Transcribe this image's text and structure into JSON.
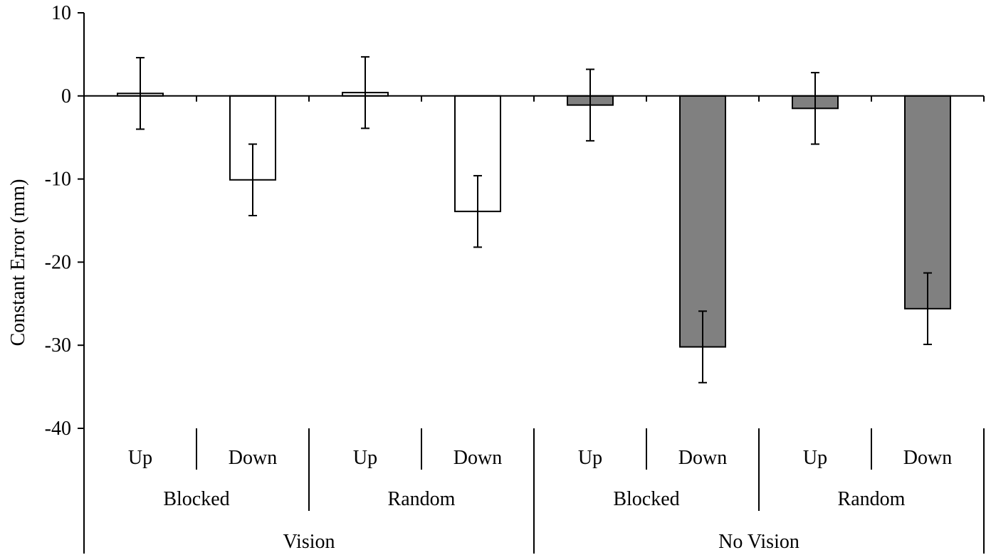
{
  "chart_data": {
    "type": "bar",
    "title": "",
    "xlabel": "",
    "ylabel": "Constant Error (mm)",
    "ylim": [
      -40,
      10
    ],
    "yticks": [
      10,
      0,
      -10,
      -20,
      -30,
      -40
    ],
    "grid": false,
    "legend": "none",
    "categories": [
      {
        "vision": "Vision",
        "schedule": "Blocked",
        "direction": "Up",
        "value": 0.3,
        "error": 4.3,
        "fill": "#ffffff"
      },
      {
        "vision": "Vision",
        "schedule": "Blocked",
        "direction": "Down",
        "value": -10.1,
        "error": 4.3,
        "fill": "#ffffff"
      },
      {
        "vision": "Vision",
        "schedule": "Random",
        "direction": "Up",
        "value": 0.4,
        "error": 4.3,
        "fill": "#ffffff"
      },
      {
        "vision": "Vision",
        "schedule": "Random",
        "direction": "Down",
        "value": -13.9,
        "error": 4.3,
        "fill": "#ffffff"
      },
      {
        "vision": "No Vision",
        "schedule": "Blocked",
        "direction": "Up",
        "value": -1.1,
        "error": 4.3,
        "fill": "#808080"
      },
      {
        "vision": "No Vision",
        "schedule": "Blocked",
        "direction": "Down",
        "value": -30.2,
        "error": 4.3,
        "fill": "#808080"
      },
      {
        "vision": "No Vision",
        "schedule": "Random",
        "direction": "Up",
        "value": -1.5,
        "error": 4.3,
        "fill": "#808080"
      },
      {
        "vision": "No Vision",
        "schedule": "Random",
        "direction": "Down",
        "value": -25.6,
        "error": 4.3,
        "fill": "#808080"
      }
    ],
    "schedule_groups": [
      "Blocked",
      "Random",
      "Blocked",
      "Random"
    ],
    "vision_groups": [
      "Vision",
      "No Vision"
    ]
  }
}
